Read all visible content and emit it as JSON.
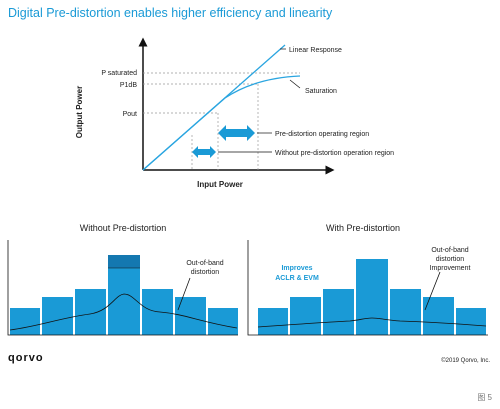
{
  "header": {
    "title": "Digital Pre-distortion enables higher efficiency and linearity"
  },
  "top_chart": {
    "y_axis_label": "Output Power",
    "x_axis_label": "Input Power",
    "levels": [
      "P saturated",
      "P1dB",
      "Pout"
    ],
    "curves": [
      "Linear Response",
      "Saturation"
    ],
    "regions": [
      "Pre-distortion operating region",
      "Without pre-distortion operation region"
    ]
  },
  "panels": [
    {
      "title": "Without Pre-distortion",
      "notes": [
        [
          "Out-of-band",
          "distortion"
        ]
      ]
    },
    {
      "title": "With Pre-distortion",
      "notes": [
        [
          "Improves",
          "ACLR & EVM"
        ],
        [
          "Out-of-band",
          "distortion",
          "Improvement"
        ]
      ]
    }
  ],
  "footer": {
    "logo": "qorvo",
    "copyright": "©2019 Qorvo, Inc.",
    "caption": "图 5"
  }
}
